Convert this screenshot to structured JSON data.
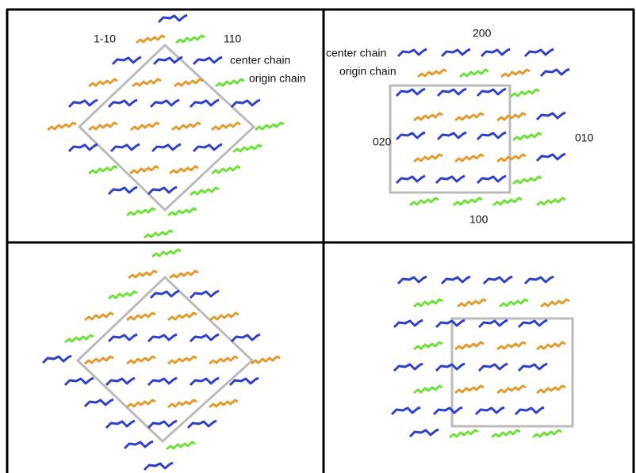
{
  "panels": [
    {
      "labels": [
        "1-10",
        "110",
        "center chain",
        "origin chain"
      ]
    },
    {
      "labels": [
        "200",
        "center chain",
        "origin chain",
        "020",
        "010",
        "100"
      ]
    }
  ]
}
